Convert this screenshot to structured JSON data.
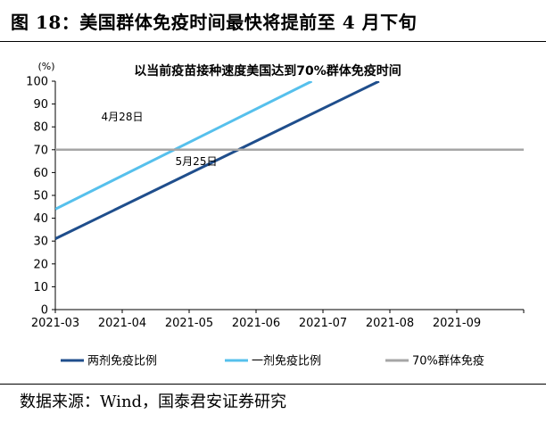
{
  "header": {
    "title": "图 18：美国群体免疫时间最快将提前至 4 月下旬"
  },
  "footer": {
    "source": "数据来源：Wind，国泰君安证券研究"
  },
  "chart_data": {
    "type": "line",
    "title": "以当前疫苗接种速度美国达到70%群体免疫时间",
    "ylabel": "(%)",
    "xlabel": "",
    "x_ticks": [
      "2021-03",
      "2021-04",
      "2021-05",
      "2021-06",
      "2021-07",
      "2021-08",
      "2021-09"
    ],
    "y_ticks": [
      0,
      10,
      20,
      30,
      40,
      50,
      60,
      70,
      80,
      90,
      100
    ],
    "ylim": [
      0,
      100
    ],
    "xlim": [
      "2021-03",
      "2021-10"
    ],
    "grid": false,
    "legend_position": "bottom",
    "series": [
      {
        "name": "两剂免疫比例",
        "color": "#1f4e8c",
        "points": [
          [
            "2021-03",
            31
          ],
          [
            "2021-07-27",
            100
          ]
        ]
      },
      {
        "name": "一剂免疫比例",
        "color": "#56c0ec",
        "points": [
          [
            "2021-03",
            44
          ],
          [
            "2021-06-26",
            100
          ]
        ]
      },
      {
        "name": "70%群体免疫",
        "color": "#a6a6a6",
        "points": [
          [
            "2021-03",
            70
          ],
          [
            "2021-10",
            70
          ]
        ]
      }
    ],
    "annotations": [
      {
        "text": "4月28日",
        "x": "2021-04-28",
        "y": 70
      },
      {
        "text": "5月25日",
        "x": "2021-05-25",
        "y": 70
      }
    ]
  }
}
